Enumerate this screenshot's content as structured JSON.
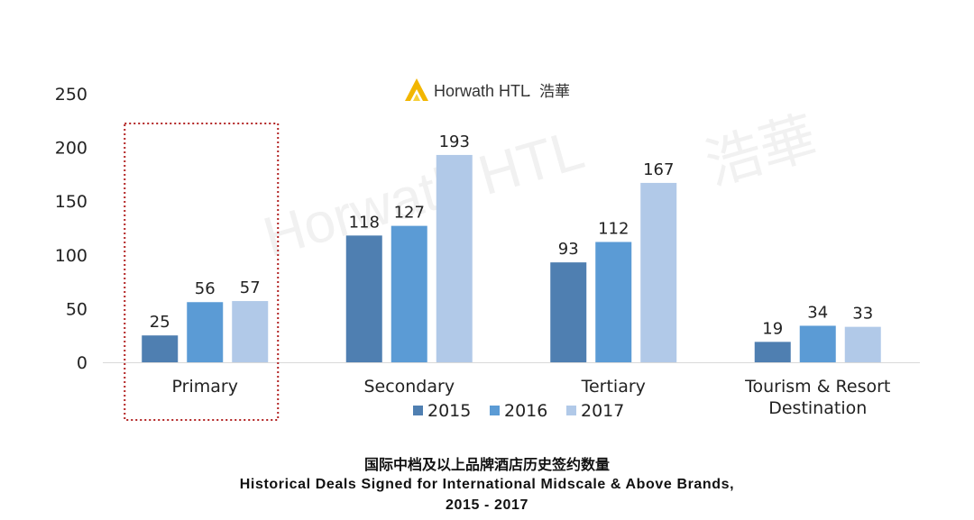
{
  "logo": {
    "text": "Horwath HTL",
    "suffix": ".",
    "cn": "浩華",
    "accent": "#f2b600"
  },
  "watermark": {
    "text": "Horwath HTL",
    "cn": "浩華"
  },
  "chart_data": {
    "type": "bar",
    "categories": [
      "Primary",
      "Secondary",
      "Tertiary",
      "Tourism & Resort Destination"
    ],
    "category_lines": [
      [
        "Primary"
      ],
      [
        "Secondary"
      ],
      [
        "Tertiary"
      ],
      [
        "Tourism & Resort",
        "Destination"
      ]
    ],
    "series": [
      {
        "name": "2015",
        "values": [
          25,
          118,
          93,
          19
        ],
        "color": "#4f7fb1"
      },
      {
        "name": "2016",
        "values": [
          56,
          127,
          112,
          34
        ],
        "color": "#5b9bd5"
      },
      {
        "name": "2017",
        "values": [
          57,
          193,
          167,
          33
        ],
        "color": "#b1c9e8"
      }
    ],
    "ylim": [
      0,
      250
    ],
    "yticks": [
      "0",
      "50",
      "100",
      "150",
      "200",
      "250"
    ],
    "grid": false,
    "legend_position": "bottom",
    "highlight_category": "Primary",
    "highlight_color": "#b22222",
    "title_lines": [
      "国际中档及以上品牌酒店历史签约数量",
      "Historical Deals Signed for International Midscale & Above Brands,",
      "2015 - 2017"
    ]
  }
}
